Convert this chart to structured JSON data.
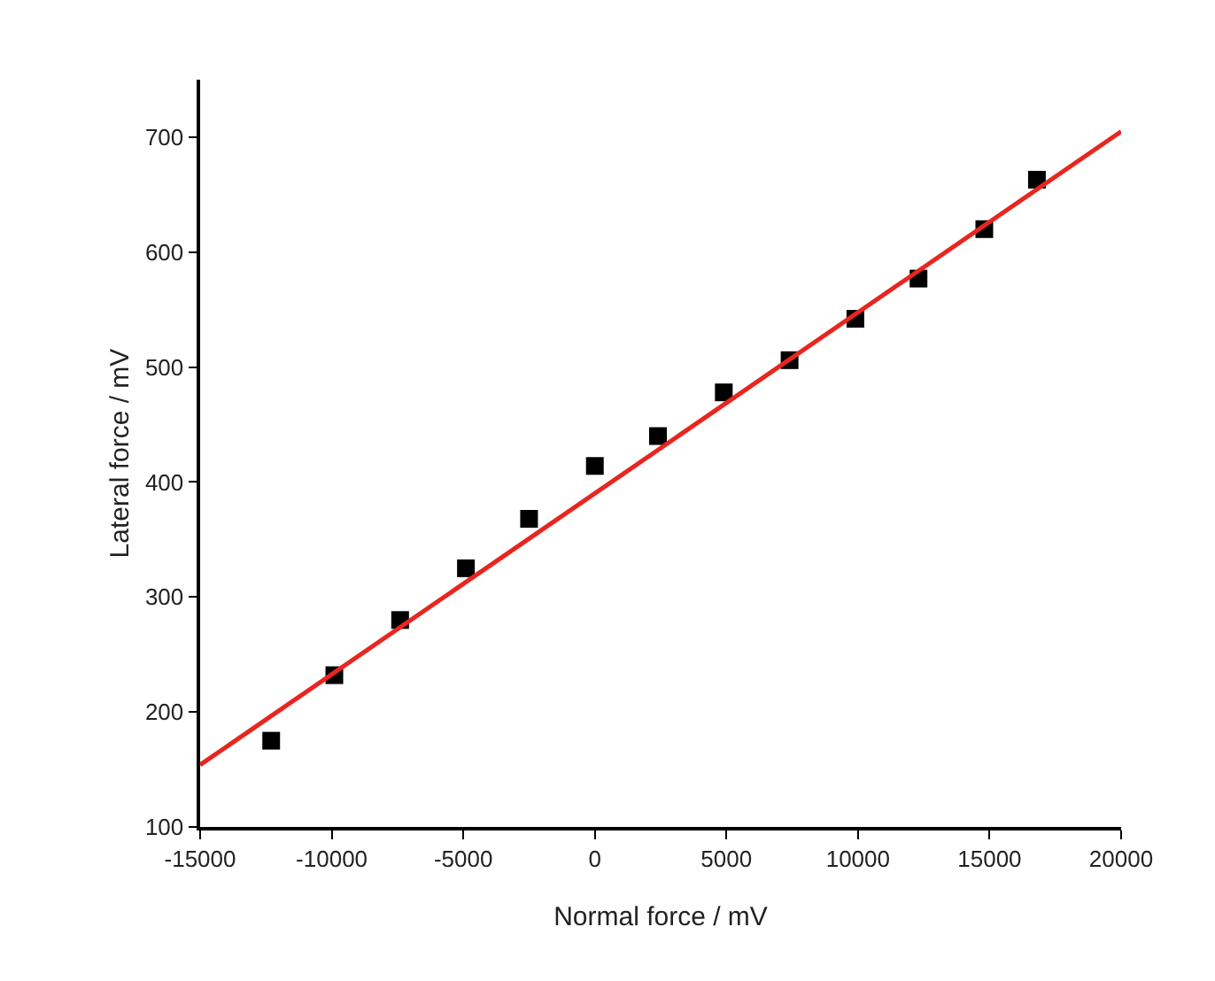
{
  "chart_data": {
    "type": "scatter",
    "xlabel": "Normal force / mV",
    "ylabel": "Lateral force / mV",
    "x": [
      -12300,
      -9900,
      -7400,
      -4900,
      -2500,
      0,
      2400,
      4900,
      7400,
      9900,
      12300,
      14800,
      16800
    ],
    "series": [
      {
        "type": "scatter",
        "color": "#000000",
        "marker": "square",
        "values": [
          175,
          232,
          280,
          325,
          368,
          414,
          440,
          478,
          506,
          542,
          577,
          620,
          663
        ]
      },
      {
        "type": "line",
        "color": "#e8261f",
        "x": [
          -15000,
          20000
        ],
        "values": [
          154,
          705
        ],
        "line_style": "solid"
      }
    ],
    "xlim": [
      -15000,
      20000
    ],
    "xticks": [
      -15000,
      -10000,
      -5000,
      0,
      5000,
      10000,
      15000,
      20000
    ],
    "ylim": [
      100,
      750
    ],
    "yticks": [
      100,
      200,
      300,
      400,
      500,
      600,
      700
    ],
    "grid": false
  }
}
